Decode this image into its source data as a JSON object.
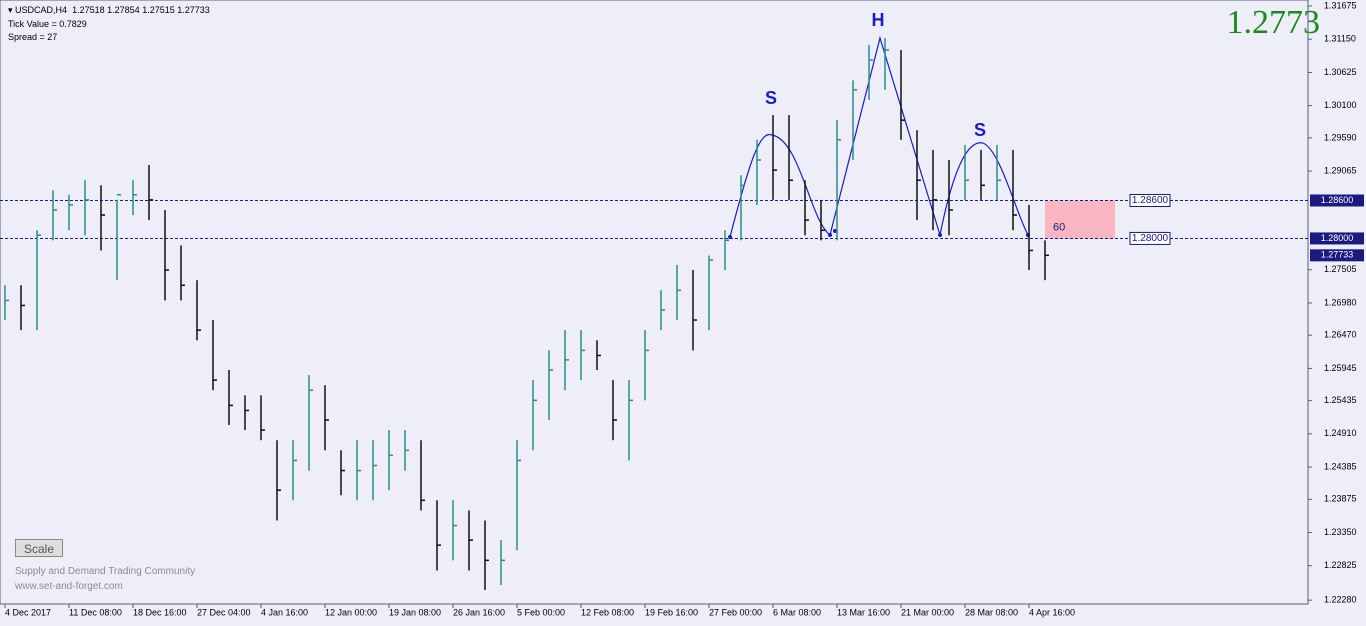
{
  "header": {
    "symbol": "USDCAD,H4",
    "ohlc": [
      "1.27518",
      "1.27854",
      "1.27515",
      "1.27733"
    ],
    "tick_value": "Tick Value = 0.7829",
    "spread": "Spread = 27",
    "big_price": "1.2773"
  },
  "scale_button": "Scale",
  "watermark": [
    "Supply and Demand Trading Community",
    "www.set-and-forget.com"
  ],
  "chart_data": {
    "type": "ohlc",
    "up_color": "#2a8c8c",
    "down_color": "#101010",
    "ylim": [
      1.2222,
      1.3177
    ],
    "yticks": [
      {
        "value": 1.31675,
        "label": "1.31675"
      },
      {
        "value": 1.3115,
        "label": "1.31150"
      },
      {
        "value": 1.30625,
        "label": "1.30625"
      },
      {
        "value": 1.301,
        "label": "1.30100"
      },
      {
        "value": 1.2959,
        "label": "1.29590"
      },
      {
        "value": 1.29065,
        "label": "1.29065"
      },
      {
        "value": 1.27505,
        "label": "1.27505"
      },
      {
        "value": 1.2698,
        "label": "1.26980"
      },
      {
        "value": 1.2647,
        "label": "1.26470"
      },
      {
        "value": 1.25945,
        "label": "1.25945"
      },
      {
        "value": 1.25435,
        "label": "1.25435"
      },
      {
        "value": 1.2491,
        "label": "1.24910"
      },
      {
        "value": 1.24385,
        "label": "1.24385"
      },
      {
        "value": 1.23875,
        "label": "1.23875"
      },
      {
        "value": 1.2335,
        "label": "1.23350"
      },
      {
        "value": 1.22825,
        "label": "1.22825"
      },
      {
        "value": 1.2228,
        "label": "1.22280"
      }
    ],
    "categories": [
      "4 Dec 2017",
      null,
      null,
      null,
      "11 Dec 08:00",
      null,
      null,
      null,
      "18 Dec 16:00",
      null,
      null,
      null,
      "27 Dec 04:00",
      null,
      null,
      null,
      "4 Jan 16:00",
      null,
      null,
      null,
      "12 Jan 00:00",
      null,
      null,
      null,
      "19 Jan 08:00",
      null,
      null,
      null,
      "26 Jan 16:00",
      null,
      null,
      null,
      "5 Feb 00:00",
      null,
      null,
      null,
      "12 Feb 08:00",
      null,
      null,
      null,
      "19 Feb 16:00",
      null,
      null,
      null,
      "27 Feb 00:00",
      null,
      null,
      null,
      "6 Mar 08:00",
      null,
      null,
      null,
      "13 Mar 16:00",
      null,
      null,
      null,
      "21 Mar 00:00",
      null,
      null,
      null,
      "28 Mar 08:00",
      null,
      null,
      null,
      "4 Apr 16:00",
      null
    ],
    "high": [
      1.2726,
      1.2726,
      1.2813,
      1.2876,
      1.2869,
      1.2892,
      1.2884,
      1.2861,
      1.2892,
      1.2916,
      1.2845,
      1.2789,
      1.2734,
      1.2671,
      1.2592,
      1.2552,
      1.2552,
      1.2481,
      1.2481,
      1.2584,
      1.2568,
      1.2465,
      1.2481,
      1.2481,
      1.2497,
      1.2497,
      1.2481,
      1.2386,
      1.2386,
      1.237,
      1.2354,
      1.2323,
      1.2481,
      1.2576,
      1.2623,
      1.2655,
      1.2655,
      1.2639,
      1.2576,
      1.2576,
      1.2655,
      1.2718,
      1.2758,
      1.275,
      1.2773,
      1.2813,
      1.29,
      1.2956,
      1.2995,
      1.2995,
      1.2892,
      1.2861,
      1.2987,
      1.305,
      1.3106,
      1.3117,
      1.3098,
      1.2971,
      1.294,
      1.2924,
      1.2948,
      1.294,
      1.2948,
      1.294,
      1.2853,
      1.2797
    ],
    "low": [
      1.2671,
      1.2655,
      1.2655,
      1.2797,
      1.2813,
      1.2805,
      1.2781,
      1.2734,
      1.2837,
      1.2829,
      1.2702,
      1.2702,
      1.2639,
      1.256,
      1.2505,
      1.2497,
      1.2481,
      1.2354,
      1.2386,
      1.2433,
      1.2465,
      1.2394,
      1.2386,
      1.2386,
      1.2402,
      1.2433,
      1.237,
      1.2275,
      1.2291,
      1.2275,
      1.2244,
      1.2252,
      1.2307,
      1.2465,
      1.2513,
      1.256,
      1.2576,
      1.2592,
      1.2481,
      1.2449,
      1.2544,
      1.2655,
      1.2671,
      1.2623,
      1.2655,
      1.275,
      1.2797,
      1.2853,
      1.2861,
      1.2861,
      1.2805,
      1.2797,
      1.2797,
      1.2924,
      1.3019,
      1.3035,
      1.2956,
      1.2829,
      1.2813,
      1.2805,
      1.2861,
      1.2861,
      1.2861,
      1.2813,
      1.275,
      1.2734
    ],
    "close": [
      1.2702,
      1.2694,
      1.2805,
      1.2845,
      1.2853,
      1.2861,
      1.2837,
      1.2869,
      1.2869,
      1.2861,
      1.275,
      1.2726,
      1.2655,
      1.2576,
      1.2536,
      1.2528,
      1.2497,
      1.2402,
      1.2449,
      1.256,
      1.2513,
      1.2433,
      1.2433,
      1.2441,
      1.2457,
      1.2465,
      1.2386,
      1.2315,
      1.2346,
      1.2323,
      1.2291,
      1.2291,
      1.2449,
      1.2544,
      1.2592,
      1.2608,
      1.2623,
      1.2615,
      1.2513,
      1.2544,
      1.2623,
      1.2687,
      1.2718,
      1.2671,
      1.2766,
      1.2797,
      1.2884,
      1.2924,
      1.2908,
      1.2892,
      1.2829,
      1.2813,
      1.2956,
      1.3035,
      1.3082,
      1.3098,
      1.2987,
      1.2892,
      1.2861,
      1.2845,
      1.2892,
      1.2884,
      1.2892,
      1.2837,
      1.2781,
      1.27733
    ],
    "levels": [
      {
        "value": 1.286,
        "label": "1.28600"
      },
      {
        "value": 1.28,
        "label": "1.28000"
      }
    ],
    "current_price": {
      "value": 1.27733,
      "label": "1.27733"
    },
    "zone_label": "60",
    "pattern_labels": [
      "S",
      "H",
      "S"
    ]
  }
}
